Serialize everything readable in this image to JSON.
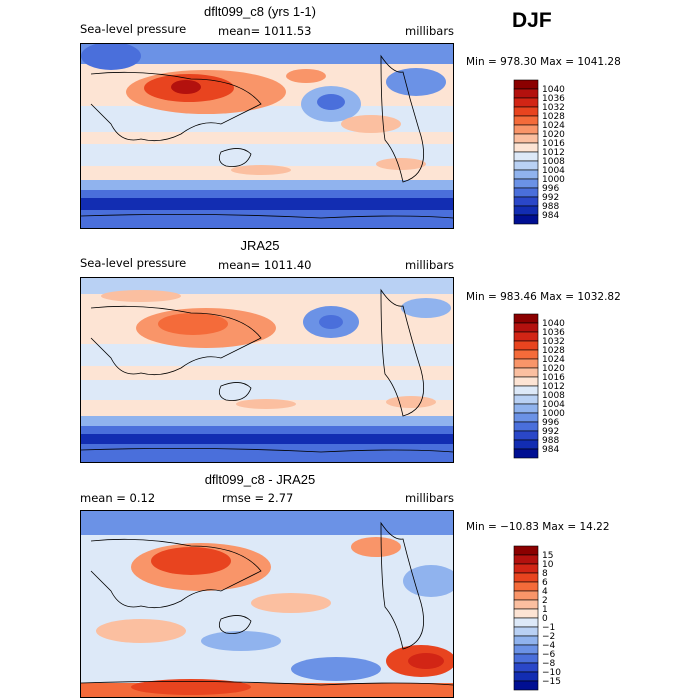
{
  "header": {
    "season": "DJF"
  },
  "panels": [
    {
      "id": "model",
      "title": "dflt099_c8 (yrs 1-1)",
      "left_label": "Sea-level pressure",
      "center_label": "mean= 1011.53",
      "right_label": "millibars",
      "minmax": "Min = 978.30 Max = 1041.28"
    },
    {
      "id": "obs",
      "title": "JRA25",
      "left_label": "Sea-level pressure",
      "center_label": "mean= 1011.40",
      "right_label": "millibars",
      "minmax": "Min = 983.46 Max = 1032.82"
    },
    {
      "id": "diff",
      "title": "dflt099_c8 - JRA25",
      "left_label": "mean =    0.12",
      "center_label": "rmse =    2.77",
      "right_label": "millibars",
      "minmax": "Min = −10.83 Max =   14.22"
    }
  ],
  "colorbars": [
    {
      "labels": [
        "1040",
        "1036",
        "1032",
        "1028",
        "1024",
        "1020",
        "1016",
        "1012",
        "1008",
        "1004",
        "1000",
        "996",
        "992",
        "988",
        "984"
      ],
      "colors": [
        "#8b0000",
        "#b3110e",
        "#d22515",
        "#e8441f",
        "#f46b3a",
        "#f99569",
        "#fbbfa0",
        "#fde4d4",
        "#dde9f8",
        "#b9d1f4",
        "#90b3ee",
        "#6b92e6",
        "#4a6fdb",
        "#2a47c8",
        "#122db2",
        "#000f92"
      ]
    },
    {
      "labels": [
        "1040",
        "1036",
        "1032",
        "1028",
        "1024",
        "1020",
        "1016",
        "1012",
        "1008",
        "1004",
        "1000",
        "996",
        "992",
        "988",
        "984"
      ],
      "colors": [
        "#8b0000",
        "#b3110e",
        "#d22515",
        "#e8441f",
        "#f46b3a",
        "#f99569",
        "#fbbfa0",
        "#fde4d4",
        "#dde9f8",
        "#b9d1f4",
        "#90b3ee",
        "#6b92e6",
        "#4a6fdb",
        "#2a47c8",
        "#122db2",
        "#000f92"
      ]
    },
    {
      "labels": [
        "15",
        "10",
        "8",
        "6",
        "4",
        "2",
        "1",
        "0",
        "−1",
        "−2",
        "−4",
        "−6",
        "−8",
        "−10",
        "−15"
      ],
      "colors": [
        "#8b0000",
        "#b3110e",
        "#d22515",
        "#e8441f",
        "#f46b3a",
        "#f99569",
        "#fbbfa0",
        "#fde4d4",
        "#dde9f8",
        "#b9d1f4",
        "#90b3ee",
        "#6b92e6",
        "#4a6fdb",
        "#2a47c8",
        "#122db2",
        "#000f92"
      ]
    }
  ],
  "chart_data": [
    {
      "type": "heatmap",
      "title": "dflt099_c8 (yrs 1-1)",
      "variable": "Sea-level pressure",
      "units": "millibars",
      "season": "DJF",
      "mean": 1011.53,
      "min": 978.3,
      "max": 1041.28,
      "contour_levels": [
        984,
        988,
        992,
        996,
        1000,
        1004,
        1008,
        1012,
        1016,
        1020,
        1024,
        1028,
        1032,
        1036,
        1040
      ]
    },
    {
      "type": "heatmap",
      "title": "JRA25",
      "variable": "Sea-level pressure",
      "units": "millibars",
      "season": "DJF",
      "mean": 1011.4,
      "min": 983.46,
      "max": 1032.82,
      "contour_levels": [
        984,
        988,
        992,
        996,
        1000,
        1004,
        1008,
        1012,
        1016,
        1020,
        1024,
        1028,
        1032,
        1036,
        1040
      ]
    },
    {
      "type": "heatmap",
      "title": "dflt099_c8 - JRA25",
      "units": "millibars",
      "season": "DJF",
      "mean": 0.12,
      "rmse": 2.77,
      "min": -10.83,
      "max": 14.22,
      "contour_levels": [
        -15,
        -10,
        -8,
        -6,
        -4,
        -2,
        -1,
        0,
        1,
        2,
        4,
        6,
        8,
        10,
        15
      ]
    }
  ]
}
